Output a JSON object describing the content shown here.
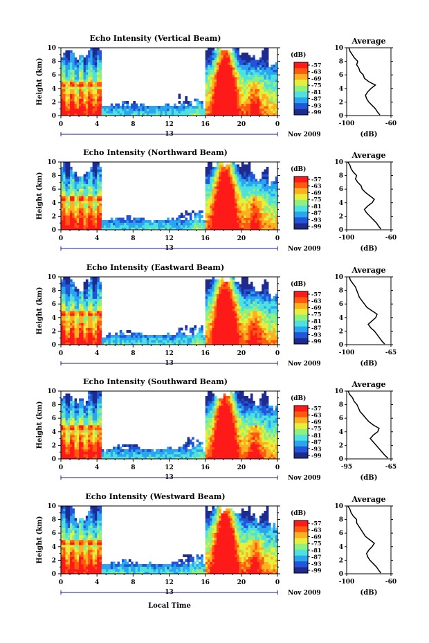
{
  "figure": {
    "ylabel": "Height (km)",
    "xlabel": "Local Time",
    "date_label": "Nov 2009",
    "day_label": "13",
    "colorbar_label": "(dB)",
    "avg_title": "Average",
    "avg_xlabel": "(dB)",
    "colors": {
      "scale": [
        "#1e2a8c",
        "#2255d8",
        "#2aa6f0",
        "#4fe0e0",
        "#8ef080",
        "#e6f03c",
        "#ffb020",
        "#ff5a10",
        "#ff1a1a"
      ],
      "background": "#ffffff"
    }
  },
  "chart_data": [
    {
      "type": "heatmap",
      "title": "Echo Intensity (Vertical Beam)",
      "x_ticks": [
        "0",
        "4",
        "8",
        "12",
        "16",
        "20",
        "0"
      ],
      "y_ticks": [
        "0",
        "2",
        "4",
        "6",
        "8",
        "10"
      ],
      "xlim": [
        0,
        24
      ],
      "ylim": [
        0,
        10
      ],
      "colorbar_ticks": [
        "-57",
        "-63",
        "-69",
        "-75",
        "-81",
        "-87",
        "-93",
        "-99"
      ],
      "average": {
        "title": "Average",
        "xlabel": "(dB)",
        "x_ticks": [
          "-100",
          "-60"
        ],
        "xlim": [
          -100,
          -60
        ],
        "y_ticks": [
          "0",
          "2",
          "4",
          "6",
          "8",
          "10"
        ],
        "profile": [
          [
            -70,
            0.1
          ],
          [
            -72,
            0.5
          ],
          [
            -74,
            1
          ],
          [
            -77,
            1.5
          ],
          [
            -80,
            2
          ],
          [
            -82,
            2.5
          ],
          [
            -83,
            3
          ],
          [
            -81,
            3.5
          ],
          [
            -78,
            4
          ],
          [
            -74,
            4.5
          ],
          [
            -80,
            5
          ],
          [
            -84,
            5.5
          ],
          [
            -85,
            6
          ],
          [
            -88,
            6.5
          ],
          [
            -89,
            7
          ],
          [
            -91,
            7.5
          ],
          [
            -90,
            8
          ],
          [
            -93,
            8.5
          ],
          [
            -95,
            9
          ],
          [
            -97,
            9.5
          ],
          [
            -98,
            10
          ]
        ]
      }
    },
    {
      "type": "heatmap",
      "title": "Echo Intensity (Northward Beam)",
      "x_ticks": [
        "0",
        "4",
        "8",
        "12",
        "16",
        "20",
        "0"
      ],
      "y_ticks": [
        "0",
        "2",
        "4",
        "6",
        "8",
        "10"
      ],
      "xlim": [
        0,
        24
      ],
      "ylim": [
        0,
        10
      ],
      "colorbar_ticks": [
        "-57",
        "-63",
        "-69",
        "-75",
        "-81",
        "-87",
        "-93",
        "-99"
      ],
      "average": {
        "title": "Average",
        "xlabel": "(dB)",
        "x_ticks": [
          "-100",
          "-60"
        ],
        "xlim": [
          -100,
          -60
        ],
        "y_ticks": [
          "0",
          "2",
          "4",
          "6",
          "8",
          "10"
        ],
        "profile": [
          [
            -69,
            0.1
          ],
          [
            -71,
            0.5
          ],
          [
            -73,
            1
          ],
          [
            -76,
            1.5
          ],
          [
            -79,
            2
          ],
          [
            -82,
            2.5
          ],
          [
            -84,
            3
          ],
          [
            -81,
            3.5
          ],
          [
            -77,
            4
          ],
          [
            -75,
            4.5
          ],
          [
            -79,
            5
          ],
          [
            -83,
            5.5
          ],
          [
            -86,
            6
          ],
          [
            -87,
            6.5
          ],
          [
            -90,
            7
          ],
          [
            -92,
            7.5
          ],
          [
            -91,
            8
          ],
          [
            -94,
            8.5
          ],
          [
            -96,
            9
          ],
          [
            -97,
            9.5
          ],
          [
            -99,
            10
          ]
        ]
      }
    },
    {
      "type": "heatmap",
      "title": "Echo Intensity (Eastward Beam)",
      "x_ticks": [
        "0",
        "4",
        "8",
        "12",
        "16",
        "20",
        "0"
      ],
      "y_ticks": [
        "0",
        "2",
        "4",
        "6",
        "8",
        "10"
      ],
      "xlim": [
        0,
        24
      ],
      "ylim": [
        0,
        10
      ],
      "colorbar_ticks": [
        "-57",
        "-63",
        "-69",
        "-75",
        "-81",
        "-87",
        "-93",
        "-99"
      ],
      "average": {
        "title": "Average",
        "xlabel": "(dB)",
        "x_ticks": [
          "-100",
          "-65"
        ],
        "xlim": [
          -100,
          -65
        ],
        "y_ticks": [
          "0",
          "2",
          "4",
          "6",
          "8",
          "10"
        ],
        "profile": [
          [
            -70,
            0.1
          ],
          [
            -72,
            0.5
          ],
          [
            -74,
            1
          ],
          [
            -76,
            1.5
          ],
          [
            -78,
            2
          ],
          [
            -81,
            2.5
          ],
          [
            -83,
            3
          ],
          [
            -80,
            3.5
          ],
          [
            -77,
            4
          ],
          [
            -76,
            4.5
          ],
          [
            -80,
            5
          ],
          [
            -84,
            5.5
          ],
          [
            -86,
            6
          ],
          [
            -88,
            6.5
          ],
          [
            -90,
            7
          ],
          [
            -91,
            7.5
          ],
          [
            -92,
            8
          ],
          [
            -93,
            8.5
          ],
          [
            -95,
            9
          ],
          [
            -97,
            9.5
          ],
          [
            -98,
            10
          ]
        ]
      }
    },
    {
      "type": "heatmap",
      "title": "Echo Intensity (Southward Beam)",
      "x_ticks": [
        "0",
        "4",
        "8",
        "12",
        "16",
        "20",
        "0"
      ],
      "y_ticks": [
        "0",
        "2",
        "4",
        "6",
        "8",
        "10"
      ],
      "xlim": [
        0,
        24
      ],
      "ylim": [
        0,
        10
      ],
      "colorbar_ticks": [
        "-57",
        "-63",
        "-69",
        "-75",
        "-81",
        "-87",
        "-93",
        "-99"
      ],
      "average": {
        "title": "Average",
        "xlabel": "(dB)",
        "x_ticks": [
          "-95",
          "-65"
        ],
        "xlim": [
          -95,
          -65
        ],
        "y_ticks": [
          "0",
          "2",
          "4",
          "6",
          "8",
          "10"
        ],
        "profile": [
          [
            -67,
            0.1
          ],
          [
            -69,
            0.5
          ],
          [
            -71,
            1
          ],
          [
            -73,
            1.5
          ],
          [
            -75,
            2
          ],
          [
            -77,
            2.5
          ],
          [
            -79,
            3
          ],
          [
            -77,
            3.5
          ],
          [
            -74,
            4
          ],
          [
            -73,
            4.5
          ],
          [
            -77,
            5
          ],
          [
            -80,
            5.5
          ],
          [
            -82,
            6
          ],
          [
            -84,
            6.5
          ],
          [
            -86,
            7
          ],
          [
            -87,
            7.5
          ],
          [
            -88,
            8
          ],
          [
            -90,
            8.5
          ],
          [
            -91,
            9
          ],
          [
            -93,
            9.5
          ],
          [
            -94,
            10
          ]
        ]
      }
    },
    {
      "type": "heatmap",
      "title": "Echo Intensity (Westward Beam)",
      "x_ticks": [
        "0",
        "4",
        "8",
        "12",
        "16",
        "20",
        "0"
      ],
      "y_ticks": [
        "0",
        "2",
        "4",
        "6",
        "8",
        "10"
      ],
      "xlim": [
        0,
        24
      ],
      "ylim": [
        0,
        10
      ],
      "colorbar_ticks": [
        "-57",
        "-63",
        "-69",
        "-75",
        "-81",
        "-87",
        "-93",
        "-99"
      ],
      "average": {
        "title": "Average",
        "xlabel": "(dB)",
        "x_ticks": [
          "-100",
          "-60"
        ],
        "xlim": [
          -100,
          -60
        ],
        "y_ticks": [
          "0",
          "2",
          "4",
          "6",
          "8",
          "10"
        ],
        "profile": [
          [
            -69,
            0.1
          ],
          [
            -71,
            0.5
          ],
          [
            -73,
            1
          ],
          [
            -76,
            1.5
          ],
          [
            -79,
            2
          ],
          [
            -81,
            2.5
          ],
          [
            -82,
            3
          ],
          [
            -80,
            3.5
          ],
          [
            -77,
            4
          ],
          [
            -75,
            4.5
          ],
          [
            -79,
            5
          ],
          [
            -83,
            5.5
          ],
          [
            -85,
            6
          ],
          [
            -87,
            6.5
          ],
          [
            -89,
            7
          ],
          [
            -91,
            7.5
          ],
          [
            -91,
            8
          ],
          [
            -94,
            8.5
          ],
          [
            -96,
            9
          ],
          [
            -97,
            9.5
          ],
          [
            -99,
            10
          ]
        ]
      }
    }
  ]
}
